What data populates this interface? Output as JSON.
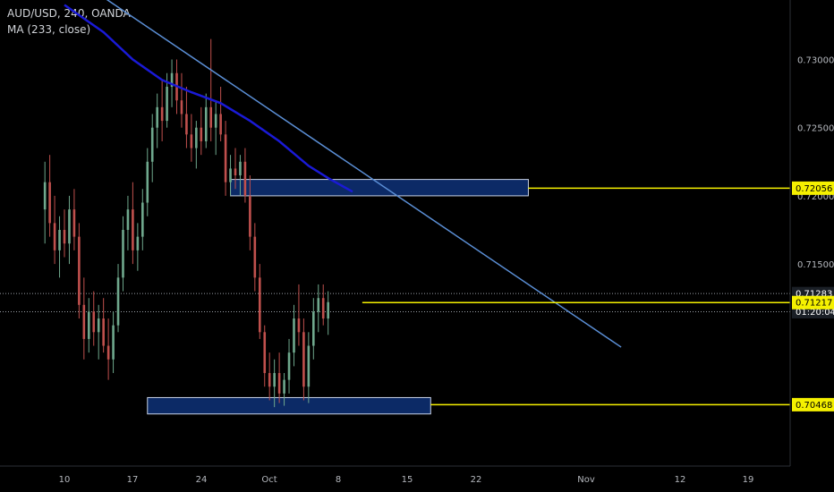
{
  "legend": {
    "symbol": "AUD/USD, 240, OANDA",
    "indicator": "MA (233, close)"
  },
  "colors": {
    "background": "#000000",
    "bull": "#6fa88d",
    "bear": "#c0504d",
    "ma": "#1a1ad6",
    "trendline": "#5b8fd6",
    "level": "#f5f000",
    "zone_fill": "#0c2a66",
    "zone_border": "#c8d2e6",
    "axis_text": "#b5b8be"
  },
  "chart_data": {
    "type": "candlestick",
    "symbol": "AUD/USD",
    "timeframe": "240",
    "source": "OANDA",
    "x_axis_ticks": [
      "10",
      "17",
      "24",
      "Oct",
      "8",
      "15",
      "22",
      "Nov",
      "12",
      "19"
    ],
    "y_axis_ticks": [
      "0.73000",
      "0.72500",
      "0.72000",
      "0.71500"
    ],
    "price_tags": [
      {
        "label": "0.72056",
        "value": 0.72056,
        "style": "level"
      },
      {
        "label": "0.71283",
        "value": 0.71283,
        "style": "current"
      },
      {
        "label": "01:20:04",
        "value": 0.7115,
        "style": "countdown"
      },
      {
        "label": "0.71217",
        "value": 0.71217,
        "style": "level"
      },
      {
        "label": "0.70468",
        "value": 0.70468,
        "style": "level"
      }
    ],
    "ylim": [
      0.699,
      0.7345
    ],
    "dotted_lines": [
      0.71283,
      0.7115
    ],
    "zones": [
      {
        "from_day": 27.0,
        "to_day": 57.5,
        "low": 0.72,
        "high": 0.7212
      },
      {
        "from_day": 18.5,
        "to_day": 47.5,
        "low": 0.704,
        "high": 0.7052
      }
    ],
    "levels": [
      {
        "value": 0.72056,
        "from_day": 57.5
      },
      {
        "value": 0.71217,
        "from_day": 40.5
      },
      {
        "value": 0.70468,
        "from_day": 47.5
      }
    ],
    "trendline": {
      "start": {
        "day": 10.0,
        "price": 0.7365
      },
      "end": {
        "day": 67.0,
        "price": 0.7089
      }
    },
    "moving_average": [
      [
        10,
        0.734
      ],
      [
        14,
        0.732
      ],
      [
        17,
        0.73
      ],
      [
        20,
        0.7285
      ],
      [
        23,
        0.7276
      ],
      [
        26,
        0.7268
      ],
      [
        29,
        0.7255
      ],
      [
        32,
        0.724
      ],
      [
        35,
        0.7222
      ],
      [
        37,
        0.7213
      ],
      [
        39.5,
        0.7203
      ]
    ],
    "candles": [
      [
        8.0,
        0.719,
        0.7225,
        0.7165,
        0.721
      ],
      [
        8.5,
        0.721,
        0.723,
        0.717,
        0.718
      ],
      [
        9.0,
        0.718,
        0.72,
        0.715,
        0.716
      ],
      [
        9.5,
        0.716,
        0.7185,
        0.714,
        0.7175
      ],
      [
        10.0,
        0.7175,
        0.719,
        0.7155,
        0.7165
      ],
      [
        10.5,
        0.7165,
        0.72,
        0.715,
        0.719
      ],
      [
        11.0,
        0.719,
        0.7205,
        0.716,
        0.717
      ],
      [
        11.5,
        0.717,
        0.718,
        0.711,
        0.712
      ],
      [
        12.0,
        0.712,
        0.714,
        0.708,
        0.7095
      ],
      [
        12.5,
        0.7095,
        0.7125,
        0.7085,
        0.7115
      ],
      [
        13.0,
        0.7115,
        0.713,
        0.709,
        0.71
      ],
      [
        13.5,
        0.71,
        0.712,
        0.708,
        0.711
      ],
      [
        14.0,
        0.711,
        0.7125,
        0.7085,
        0.709
      ],
      [
        14.5,
        0.709,
        0.711,
        0.7065,
        0.708
      ],
      [
        15.0,
        0.708,
        0.7115,
        0.707,
        0.7105
      ],
      [
        15.5,
        0.7105,
        0.715,
        0.71,
        0.714
      ],
      [
        16.0,
        0.714,
        0.7185,
        0.713,
        0.7175
      ],
      [
        16.5,
        0.7175,
        0.72,
        0.716,
        0.719
      ],
      [
        17.0,
        0.719,
        0.721,
        0.715,
        0.716
      ],
      [
        17.5,
        0.716,
        0.718,
        0.7145,
        0.717
      ],
      [
        18.0,
        0.717,
        0.7205,
        0.716,
        0.7195
      ],
      [
        18.5,
        0.7195,
        0.7235,
        0.7185,
        0.7225
      ],
      [
        19.0,
        0.7225,
        0.726,
        0.721,
        0.725
      ],
      [
        19.5,
        0.725,
        0.7275,
        0.7235,
        0.7265
      ],
      [
        20.0,
        0.7265,
        0.7285,
        0.724,
        0.7255
      ],
      [
        20.5,
        0.7255,
        0.729,
        0.725,
        0.728
      ],
      [
        21.0,
        0.728,
        0.73,
        0.7265,
        0.729
      ],
      [
        21.5,
        0.729,
        0.73,
        0.726,
        0.727
      ],
      [
        22.0,
        0.727,
        0.729,
        0.725,
        0.726
      ],
      [
        22.5,
        0.726,
        0.728,
        0.7235,
        0.7245
      ],
      [
        23.0,
        0.7245,
        0.726,
        0.7225,
        0.7235
      ],
      [
        23.5,
        0.7235,
        0.7255,
        0.722,
        0.725
      ],
      [
        24.0,
        0.725,
        0.7265,
        0.723,
        0.724
      ],
      [
        24.5,
        0.724,
        0.7275,
        0.7235,
        0.7265
      ],
      [
        25.0,
        0.7265,
        0.7315,
        0.724,
        0.725
      ],
      [
        25.5,
        0.725,
        0.727,
        0.723,
        0.726
      ],
      [
        26.0,
        0.726,
        0.728,
        0.724,
        0.7245
      ],
      [
        26.5,
        0.7245,
        0.7255,
        0.72,
        0.721
      ],
      [
        27.0,
        0.721,
        0.723,
        0.72,
        0.722
      ],
      [
        27.5,
        0.722,
        0.7235,
        0.7205,
        0.7215
      ],
      [
        28.0,
        0.7215,
        0.723,
        0.72,
        0.7225
      ],
      [
        28.5,
        0.7225,
        0.7235,
        0.7195,
        0.72
      ],
      [
        29.0,
        0.72,
        0.7215,
        0.716,
        0.717
      ],
      [
        29.5,
        0.717,
        0.718,
        0.713,
        0.714
      ],
      [
        30.0,
        0.714,
        0.715,
        0.7095,
        0.71
      ],
      [
        30.5,
        0.71,
        0.7105,
        0.706,
        0.707
      ],
      [
        31.0,
        0.707,
        0.7085,
        0.705,
        0.706
      ],
      [
        31.5,
        0.706,
        0.708,
        0.7045,
        0.707
      ],
      [
        32.0,
        0.707,
        0.7085,
        0.7048,
        0.7055
      ],
      [
        32.5,
        0.7055,
        0.707,
        0.7046,
        0.7065
      ],
      [
        33.0,
        0.7065,
        0.7095,
        0.7055,
        0.7085
      ],
      [
        33.5,
        0.7085,
        0.712,
        0.7075,
        0.711
      ],
      [
        34.0,
        0.711,
        0.7135,
        0.709,
        0.71
      ],
      [
        34.5,
        0.71,
        0.711,
        0.705,
        0.706
      ],
      [
        35.0,
        0.706,
        0.71,
        0.7048,
        0.709
      ],
      [
        35.5,
        0.709,
        0.7125,
        0.708,
        0.7115
      ],
      [
        36.0,
        0.7115,
        0.7135,
        0.71,
        0.7125
      ],
      [
        36.5,
        0.7125,
        0.7135,
        0.7105,
        0.711
      ],
      [
        37.0,
        0.711,
        0.713,
        0.7098,
        0.7122
      ]
    ]
  }
}
